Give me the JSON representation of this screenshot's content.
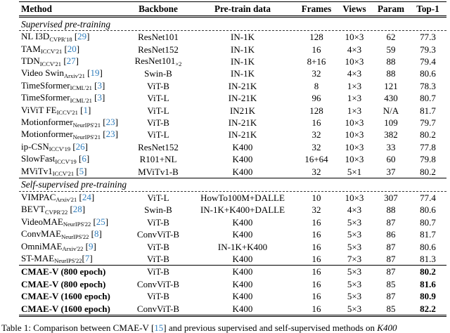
{
  "page": {
    "background": "#ffffff",
    "citation_color": "#2e7cbc"
  },
  "table": {
    "column_headers": [
      "Method",
      "Backbone",
      "Pre-train data",
      "Frames",
      "Views",
      "Param",
      "Top-1"
    ],
    "sections": [
      {
        "label": "Supervised pre-training",
        "rows": [
          {
            "method": "NL I3D",
            "venue": "CVPR'18",
            "cite": "29",
            "backbone": "ResNet101",
            "backbone_sub": "",
            "pretrain": "IN-1K",
            "frames": "128",
            "views": "10×3",
            "param": "62",
            "top1": "77.3",
            "bold": false
          },
          {
            "method": "TAM",
            "venue": "ICCV'21",
            "cite": "20",
            "backbone": "ResNet152",
            "backbone_sub": "",
            "pretrain": "IN-1K",
            "frames": "16",
            "views": "4×3",
            "param": "59",
            "top1": "79.3",
            "bold": false
          },
          {
            "method": "TDN",
            "venue": "ICCV'21",
            "cite": "27",
            "backbone": "ResNet101",
            "backbone_sub": "×2",
            "pretrain": "IN-1K",
            "frames": "8+16",
            "views": "10×3",
            "param": "88",
            "top1": "79.4",
            "bold": false
          },
          {
            "method": "Video Swin",
            "venue": "Arxiv'21",
            "cite": "19",
            "backbone": "Swin-B",
            "backbone_sub": "",
            "pretrain": "IN-1K",
            "frames": "32",
            "views": "4×3",
            "param": "88",
            "top1": "80.6",
            "bold": false
          },
          {
            "method": "TimeSformer",
            "venue": "ICML'21",
            "cite": "3",
            "backbone": "ViT-B",
            "backbone_sub": "",
            "pretrain": "IN-21K",
            "frames": "8",
            "views": "1×3",
            "param": "121",
            "top1": "78.3",
            "bold": false
          },
          {
            "method": "TimeSformer",
            "venue": "ICML'21",
            "cite": "3",
            "backbone": "ViT-L",
            "backbone_sub": "",
            "pretrain": "IN-21K",
            "frames": "96",
            "views": "1×3",
            "param": "430",
            "top1": "80.7",
            "bold": false
          },
          {
            "method": "ViViT FE",
            "venue": "ICCV'21",
            "cite": "1",
            "backbone": "ViT-L",
            "backbone_sub": "",
            "pretrain": "IN21K",
            "frames": "128",
            "views": "1×3",
            "param": "N/A",
            "top1": "81.7",
            "bold": false
          },
          {
            "method": "Motionformer",
            "venue": "NeurIPS'21",
            "cite": "23",
            "backbone": "ViT-B",
            "backbone_sub": "",
            "pretrain": "IN-21K",
            "frames": "16",
            "views": "10×3",
            "param": "109",
            "top1": "79.7",
            "bold": false
          },
          {
            "method": "Motionformer",
            "venue": "NeurIPS'21",
            "cite": "23",
            "backbone": "ViT-L",
            "backbone_sub": "",
            "pretrain": "IN-21K",
            "frames": "32",
            "views": "10×3",
            "param": "382",
            "top1": "80.2",
            "bold": false
          },
          {
            "method": "ip-CSN",
            "venue": "ICCV'19",
            "cite": "26",
            "backbone": "ResNet152",
            "backbone_sub": "",
            "pretrain": "K400",
            "frames": "32",
            "views": "10×3",
            "param": "33",
            "top1": "77.8",
            "bold": false
          },
          {
            "method": "SlowFast",
            "venue": "ICCV'19",
            "cite": "6",
            "backbone": "R101+NL",
            "backbone_sub": "",
            "pretrain": "K400",
            "frames": "16+64",
            "views": "10×3",
            "param": "60",
            "top1": "79.8",
            "bold": false
          },
          {
            "method": "MViTv1",
            "venue": "ICCV'21",
            "cite": "5",
            "backbone": "MViTv1-B",
            "backbone_sub": "",
            "pretrain": "K400",
            "frames": "32",
            "views": "5×1",
            "param": "37",
            "top1": "80.2",
            "bold": false
          }
        ]
      },
      {
        "label": "Self-supervised pre-training",
        "rows": [
          {
            "method": "VIMPAC",
            "venue": "Arxiv'21",
            "cite": "24",
            "backbone": "ViT-L",
            "backbone_sub": "",
            "pretrain": "HowTo100M+DALLE",
            "frames": "10",
            "views": "10×3",
            "param": "307",
            "top1": "77.4",
            "bold": false
          },
          {
            "method": "BEVT",
            "venue": "CVPR'22",
            "cite": "28",
            "backbone": "Swin-B",
            "backbone_sub": "",
            "pretrain": "IN-1K+K400+DALLE",
            "frames": "32",
            "views": "4×3",
            "param": "88",
            "top1": "80.6",
            "bold": false
          },
          {
            "method": "VideoMAE",
            "venue": "NeurIPS'22",
            "cite": "25",
            "backbone": "ViT-B",
            "backbone_sub": "",
            "pretrain": "K400",
            "frames": "16",
            "views": "5×3",
            "param": "87",
            "top1": "80.7",
            "bold": false
          },
          {
            "method": "ConvMAE",
            "venue": "NeurIPS'22",
            "cite": "8",
            "backbone": "ConvViT-B",
            "backbone_sub": "",
            "pretrain": "K400",
            "frames": "16",
            "views": "5×3",
            "param": "86",
            "top1": "81.7",
            "bold": false
          },
          {
            "method": "OmniMAE",
            "venue": "Arxiv'22",
            "cite": "9",
            "backbone": "ViT-B",
            "backbone_sub": "",
            "pretrain": "IN-1K+K400",
            "frames": "16",
            "views": "5×3",
            "param": "87",
            "top1": "80.6",
            "bold": false
          },
          {
            "method": "ST-MAE",
            "venue": "NeurIPS'22",
            "cite": "7",
            "cite_nospace": true,
            "backbone": "ViT-B",
            "backbone_sub": "",
            "pretrain": "K400",
            "frames": "16",
            "views": "7×3",
            "param": "87",
            "top1": "81.3",
            "bold": false
          }
        ]
      },
      {
        "label": "",
        "rows": [
          {
            "method": "CMAE-V (800 epoch)",
            "venue": "",
            "cite": "",
            "backbone": "ViT-B",
            "backbone_sub": "",
            "pretrain": "K400",
            "frames": "16",
            "views": "5×3",
            "param": "87",
            "top1": "80.2",
            "bold": true
          },
          {
            "method": "CMAE-V (800 epoch)",
            "venue": "",
            "cite": "",
            "backbone": "ConvViT-B",
            "backbone_sub": "",
            "pretrain": "K400",
            "frames": "16",
            "views": "5×3",
            "param": "85",
            "top1": "81.6",
            "bold": true
          },
          {
            "method": "CMAE-V (1600 epoch)",
            "venue": "",
            "cite": "",
            "backbone": "ViT-B",
            "backbone_sub": "",
            "pretrain": "K400",
            "frames": "16",
            "views": "5×3",
            "param": "87",
            "top1": "80.9",
            "bold": true
          },
          {
            "method": "CMAE-V (1600 epoch)",
            "venue": "",
            "cite": "",
            "backbone": "ConvViT-B",
            "backbone_sub": "",
            "pretrain": "K400",
            "frames": "16",
            "views": "5×3",
            "param": "85",
            "top1": "82.2",
            "bold": true
          }
        ]
      }
    ]
  },
  "caption": {
    "prefix": "Table 1: Comparison between CMAE-V [",
    "cite": "15",
    "middle": "] and previous supervised and self-supervised methods on ",
    "dataset": "K400"
  }
}
